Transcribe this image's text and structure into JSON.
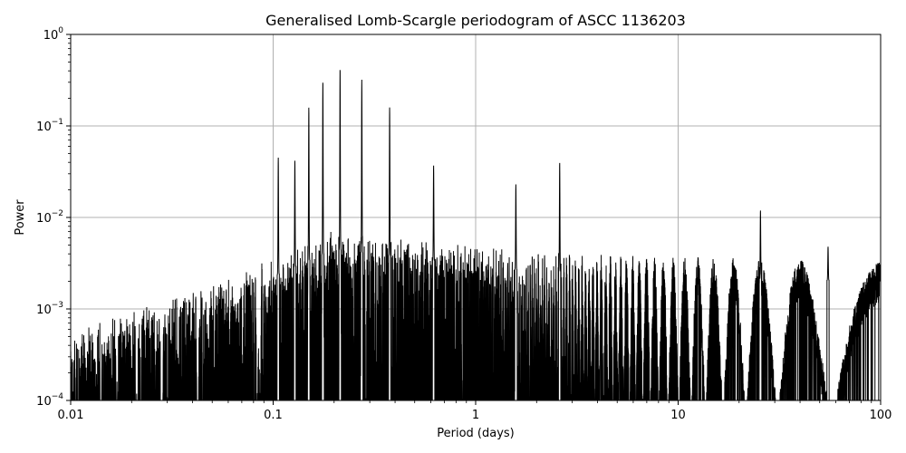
{
  "chart_data": {
    "type": "line",
    "title": "Generalised Lomb-Scargle periodogram of ASCC 1136203",
    "xlabel": "Period (days)",
    "ylabel": "Power",
    "x_scale": "log",
    "y_scale": "log",
    "xlim": [
      0.01,
      100
    ],
    "ylim": [
      0.0001,
      1
    ],
    "grid": true,
    "x_ticks": [
      {
        "value": 0.01,
        "label": "0.01"
      },
      {
        "value": 0.1,
        "label": "0.1"
      },
      {
        "value": 1,
        "label": "1"
      },
      {
        "value": 10,
        "label": "10"
      },
      {
        "value": 100,
        "label": "100"
      }
    ],
    "y_ticks": [
      {
        "value": 0.0001,
        "base": "10",
        "exp": "−4"
      },
      {
        "value": 0.001,
        "base": "10",
        "exp": "−3"
      },
      {
        "value": 0.01,
        "base": "10",
        "exp": "−2"
      },
      {
        "value": 0.1,
        "base": "10",
        "exp": "−1"
      },
      {
        "value": 1,
        "base": "10",
        "exp": "0"
      }
    ],
    "series": [
      {
        "color": "#000000",
        "peaks": [
          {
            "period": 0.106,
            "power": 0.045
          },
          {
            "period": 0.128,
            "power": 0.042
          },
          {
            "period": 0.15,
            "power": 0.16
          },
          {
            "period": 0.176,
            "power": 0.31
          },
          {
            "period": 0.214,
            "power": 0.43
          },
          {
            "period": 0.274,
            "power": 0.32
          },
          {
            "period": 0.376,
            "power": 0.16
          },
          {
            "period": 0.62,
            "power": 0.037
          },
          {
            "period": 1.58,
            "power": 0.023
          },
          {
            "period": 2.6,
            "power": 0.04
          },
          {
            "period": 25.5,
            "power": 0.012
          },
          {
            "period": 55,
            "power": 0.0048
          },
          {
            "period": 100,
            "power": 0.0026
          }
        ]
      }
    ]
  }
}
